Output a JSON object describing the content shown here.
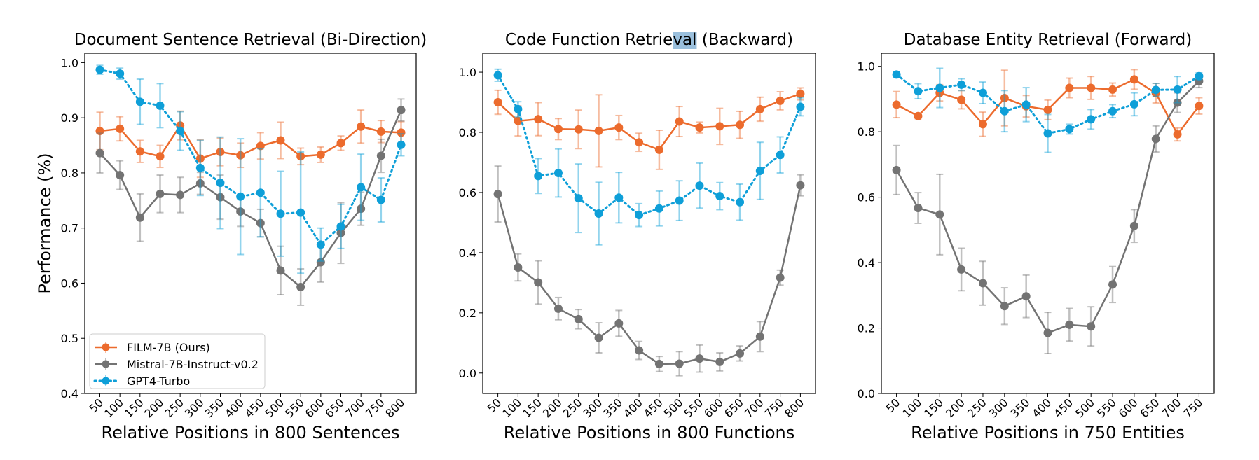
{
  "figure": {
    "ylabel": "Performance (%)"
  },
  "colors": {
    "FILM-7B (Ours)": "#EC6B2D",
    "Mistral-7B-Instruct-v0.2": "#737373",
    "GPT4-Turbo": "#0E9FD8",
    "selection_highlight": "#9ABFDC"
  },
  "legend": {
    "location": "lower-left",
    "entries": [
      "FILM-7B (Ours)",
      "Mistral-7B-Instruct-v0.2",
      "GPT4-Turbo"
    ]
  },
  "chart_data": [
    {
      "type": "line",
      "title": "Document Sentence Retrieval (Bi-Direction)",
      "xlabel": "Relative Positions in 800 Sentences",
      "ylabel": "Performance (%)",
      "ylim": [
        0.4,
        1.017
      ],
      "yticks": [
        "0.4",
        "0.5",
        "0.6",
        "0.7",
        "0.8",
        "0.9",
        "1.0"
      ],
      "x": [
        50,
        100,
        150,
        200,
        250,
        300,
        350,
        400,
        450,
        500,
        550,
        600,
        650,
        700,
        750,
        800
      ],
      "xlim": [
        12.5,
        837.5
      ],
      "grid": false,
      "series": [
        {
          "name": "FILM-7B (Ours)",
          "style": "solid",
          "values": [
            0.876,
            0.88,
            0.839,
            0.83,
            0.886,
            0.826,
            0.838,
            0.832,
            0.849,
            0.859,
            0.83,
            0.833,
            0.854,
            0.884,
            0.875,
            0.873
          ],
          "errors": [
            0.034,
            0.022,
            0.02,
            0.02,
            0.026,
            0.034,
            0.025,
            0.022,
            0.024,
            0.033,
            0.015,
            0.014,
            0.013,
            0.03,
            0.02,
            0.02
          ]
        },
        {
          "name": "Mistral-7B-Instruct-v0.2",
          "style": "solid",
          "values": [
            0.836,
            0.796,
            0.719,
            0.762,
            0.76,
            0.781,
            0.756,
            0.73,
            0.709,
            0.623,
            0.593,
            0.638,
            0.691,
            0.735,
            0.831,
            0.914
          ],
          "errors": [
            0.036,
            0.026,
            0.043,
            0.034,
            0.032,
            0.02,
            0.04,
            0.027,
            0.025,
            0.044,
            0.033,
            0.036,
            0.055,
            0.03,
            0.03,
            0.02
          ]
        },
        {
          "name": "GPT4-Turbo",
          "style": "dotted",
          "values": [
            0.987,
            0.98,
            0.929,
            0.922,
            0.876,
            0.809,
            0.782,
            0.757,
            0.764,
            0.726,
            0.728,
            0.67,
            0.703,
            0.774,
            0.751,
            0.851
          ],
          "errors": [
            0.008,
            0.01,
            0.041,
            0.04,
            0.035,
            0.05,
            0.083,
            0.105,
            0.08,
            0.077,
            0.11,
            0.03,
            0.04,
            0.06,
            0.04,
            0.02
          ]
        }
      ]
    },
    {
      "type": "line",
      "title": "Code Function Retrieval (Backward)",
      "title_parts": [
        "Code Function Retrie",
        "val",
        " (Backward)"
      ],
      "xlabel": "Relative Positions in 800 Functions",
      "ylim": [
        -0.068,
        1.063
      ],
      "yticks": [
        "0.0",
        "0.2",
        "0.4",
        "0.6",
        "0.8",
        "1.0"
      ],
      "x": [
        50,
        100,
        150,
        200,
        250,
        300,
        350,
        400,
        450,
        500,
        550,
        600,
        650,
        700,
        750,
        800
      ],
      "xlim": [
        12.5,
        837.5
      ],
      "grid": false,
      "series": [
        {
          "name": "FILM-7B (Ours)",
          "style": "solid",
          "values": [
            0.9,
            0.838,
            0.844,
            0.811,
            0.81,
            0.805,
            0.816,
            0.767,
            0.742,
            0.836,
            0.816,
            0.82,
            0.825,
            0.877,
            0.905,
            0.928
          ],
          "errors": [
            0.04,
            0.05,
            0.055,
            0.035,
            0.064,
            0.12,
            0.04,
            0.03,
            0.065,
            0.05,
            0.018,
            0.06,
            0.045,
            0.04,
            0.03,
            0.02
          ]
        },
        {
          "name": "Mistral-7B-Instruct-v0.2",
          "style": "solid",
          "values": [
            0.595,
            0.351,
            0.301,
            0.214,
            0.179,
            0.117,
            0.165,
            0.075,
            0.03,
            0.031,
            0.048,
            0.037,
            0.065,
            0.121,
            0.317,
            0.624
          ],
          "errors": [
            0.093,
            0.045,
            0.072,
            0.037,
            0.032,
            0.05,
            0.043,
            0.03,
            0.025,
            0.04,
            0.045,
            0.03,
            0.025,
            0.05,
            0.025,
            0.035
          ]
        },
        {
          "name": "GPT4-Turbo",
          "style": "dotted",
          "values": [
            0.99,
            0.877,
            0.655,
            0.665,
            0.581,
            0.53,
            0.583,
            0.525,
            0.547,
            0.573,
            0.623,
            0.588,
            0.568,
            0.672,
            0.725,
            0.885
          ],
          "errors": [
            0.02,
            0.025,
            0.058,
            0.08,
            0.114,
            0.104,
            0.084,
            0.038,
            0.058,
            0.066,
            0.075,
            0.045,
            0.06,
            0.095,
            0.06,
            0.03
          ]
        }
      ]
    },
    {
      "type": "line",
      "title": "Database Entity Retrieval (Forward)",
      "xlabel": "Relative Positions in 750 Entities",
      "ylim": [
        0.0,
        1.04
      ],
      "yticks": [
        "0.0",
        "0.2",
        "0.4",
        "0.6",
        "0.8",
        "1.0"
      ],
      "x": [
        50,
        100,
        150,
        200,
        250,
        300,
        350,
        400,
        450,
        500,
        550,
        600,
        650,
        700,
        750
      ],
      "xlim": [
        15,
        785
      ],
      "grid": false,
      "series": [
        {
          "name": "FILM-7B (Ours)",
          "style": "solid",
          "values": [
            0.883,
            0.848,
            0.919,
            0.898,
            0.823,
            0.903,
            0.878,
            0.867,
            0.934,
            0.934,
            0.929,
            0.96,
            0.918,
            0.792,
            0.879
          ],
          "errors": [
            0.04,
            0.008,
            0.025,
            0.028,
            0.037,
            0.085,
            0.033,
            0.03,
            0.03,
            0.035,
            0.02,
            0.03,
            0.03,
            0.02,
            0.025
          ]
        },
        {
          "name": "Mistral-7B-Instruct-v0.2",
          "style": "solid",
          "values": [
            0.683,
            0.567,
            0.547,
            0.379,
            0.337,
            0.267,
            0.297,
            0.185,
            0.21,
            0.205,
            0.333,
            0.512,
            0.778,
            0.889,
            0.955
          ],
          "errors": [
            0.075,
            0.047,
            0.123,
            0.065,
            0.067,
            0.056,
            0.065,
            0.063,
            0.05,
            0.06,
            0.055,
            0.05,
            0.04,
            0.03,
            0.02
          ]
        },
        {
          "name": "GPT4-Turbo",
          "style": "dotted",
          "values": [
            0.975,
            0.924,
            0.934,
            0.944,
            0.919,
            0.863,
            0.883,
            0.795,
            0.808,
            0.838,
            0.863,
            0.884,
            0.928,
            0.929,
            0.97
          ],
          "errors": [
            0.008,
            0.023,
            0.06,
            0.018,
            0.033,
            0.063,
            0.052,
            0.058,
            0.015,
            0.03,
            0.02,
            0.035,
            0.02,
            0.04,
            0.01
          ]
        }
      ]
    }
  ]
}
